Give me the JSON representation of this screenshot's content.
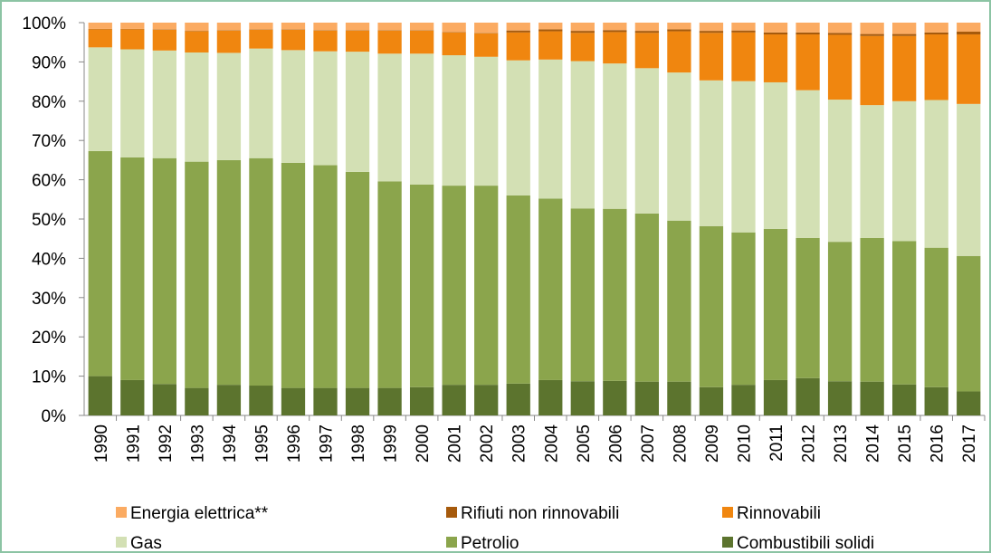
{
  "chart_data": {
    "type": "stacked_bar",
    "categories": [
      "1990",
      "1991",
      "1992",
      "1993",
      "1994",
      "1995",
      "1996",
      "1997",
      "1998",
      "1999",
      "2000",
      "2001",
      "2002",
      "2003",
      "2004",
      "2005",
      "2006",
      "2007",
      "2008",
      "2009",
      "2010",
      "2011",
      "2012",
      "2013",
      "2014",
      "2015",
      "2016",
      "2017"
    ],
    "series": [
      {
        "name": "Energia elettrica**",
        "color": "#fbab62",
        "values": [
          1.6,
          1.6,
          1.7,
          2.1,
          1.9,
          1.7,
          1.7,
          1.9,
          1.9,
          1.9,
          1.9,
          2.4,
          2.6,
          2.0,
          1.7,
          2.1,
          1.9,
          2.1,
          1.7,
          2.1,
          2.0,
          2.5,
          2.5,
          2.6,
          2.9,
          2.9,
          2.5,
          2.3
        ]
      },
      {
        "name": "Rifiuti non rinnovabili",
        "color": "#a65a0c",
        "values": [
          0.1,
          0.1,
          0.1,
          0.1,
          0.1,
          0.1,
          0.1,
          0.1,
          0.1,
          0.1,
          0.1,
          0.1,
          0.1,
          0.5,
          0.5,
          0.5,
          0.5,
          0.5,
          0.5,
          0.5,
          0.5,
          0.5,
          0.5,
          0.5,
          0.5,
          0.5,
          0.5,
          0.7
        ]
      },
      {
        "name": "Rinnovabili",
        "color": "#f0860f",
        "values": [
          4.6,
          5.1,
          5.3,
          5.4,
          5.7,
          4.8,
          5.2,
          5.3,
          5.4,
          5.9,
          5.9,
          5.8,
          6.0,
          7.1,
          7.2,
          7.2,
          8.0,
          9.0,
          10.5,
          12.1,
          12.4,
          12.2,
          14.2,
          16.5,
          17.6,
          16.6,
          16.7,
          17.7
        ]
      },
      {
        "name": "Gas",
        "color": "#d3e0b4",
        "values": [
          26.4,
          27.5,
          27.4,
          27.8,
          27.3,
          27.9,
          28.7,
          29.0,
          30.6,
          32.5,
          33.3,
          33.2,
          32.8,
          34.4,
          35.4,
          37.5,
          37.0,
          37.0,
          37.7,
          37.1,
          38.5,
          37.3,
          37.6,
          36.2,
          33.8,
          35.6,
          37.6,
          38.7
        ]
      },
      {
        "name": "Petrolio",
        "color": "#8ba54c",
        "values": [
          57.3,
          56.7,
          57.5,
          57.6,
          57.2,
          57.9,
          57.3,
          56.7,
          55.0,
          52.6,
          51.6,
          50.7,
          50.7,
          47.9,
          46.2,
          44.0,
          43.8,
          42.8,
          41.0,
          41.0,
          38.8,
          38.5,
          35.7,
          35.5,
          36.6,
          36.5,
          35.5,
          34.5
        ]
      },
      {
        "name": "Combustibili solidi",
        "color": "#5c742e",
        "values": [
          10,
          9,
          8,
          7,
          7.8,
          7.6,
          7,
          7,
          7,
          7,
          7.2,
          7.8,
          7.8,
          8.1,
          9,
          8.7,
          8.8,
          8.6,
          8.6,
          7.2,
          7.8,
          9,
          9.5,
          8.7,
          8.6,
          7.9,
          7.2,
          6.1
        ]
      }
    ],
    "ylim": [
      0,
      100
    ],
    "yticks": [
      {
        "value": 0,
        "label": "0%"
      },
      {
        "value": 10,
        "label": "10%"
      },
      {
        "value": 20,
        "label": "20%"
      },
      {
        "value": 30,
        "label": "30%"
      },
      {
        "value": 40,
        "label": "40%"
      },
      {
        "value": 50,
        "label": "50%"
      },
      {
        "value": 60,
        "label": "60%"
      },
      {
        "value": 70,
        "label": "70%"
      },
      {
        "value": 80,
        "label": "80%"
      },
      {
        "value": 90,
        "label": "90%"
      },
      {
        "value": 100,
        "label": "100%"
      }
    ]
  }
}
